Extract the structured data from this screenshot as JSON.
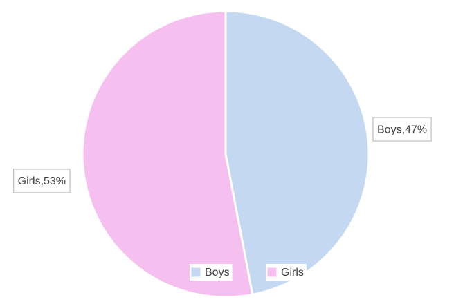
{
  "chart_data": {
    "type": "pie",
    "slices": [
      {
        "label": "Boys",
        "value": 47,
        "color": "#c5d8f1",
        "data_label": "Boys,47%"
      },
      {
        "label": "Girls",
        "value": 53,
        "color": "#f5c0f0",
        "data_label": "Girls,53%"
      }
    ],
    "legend": {
      "position": "bottom",
      "items": [
        "Boys",
        "Girls"
      ]
    },
    "label_border_color": "#bfbfbf",
    "text_color": "#404040"
  }
}
